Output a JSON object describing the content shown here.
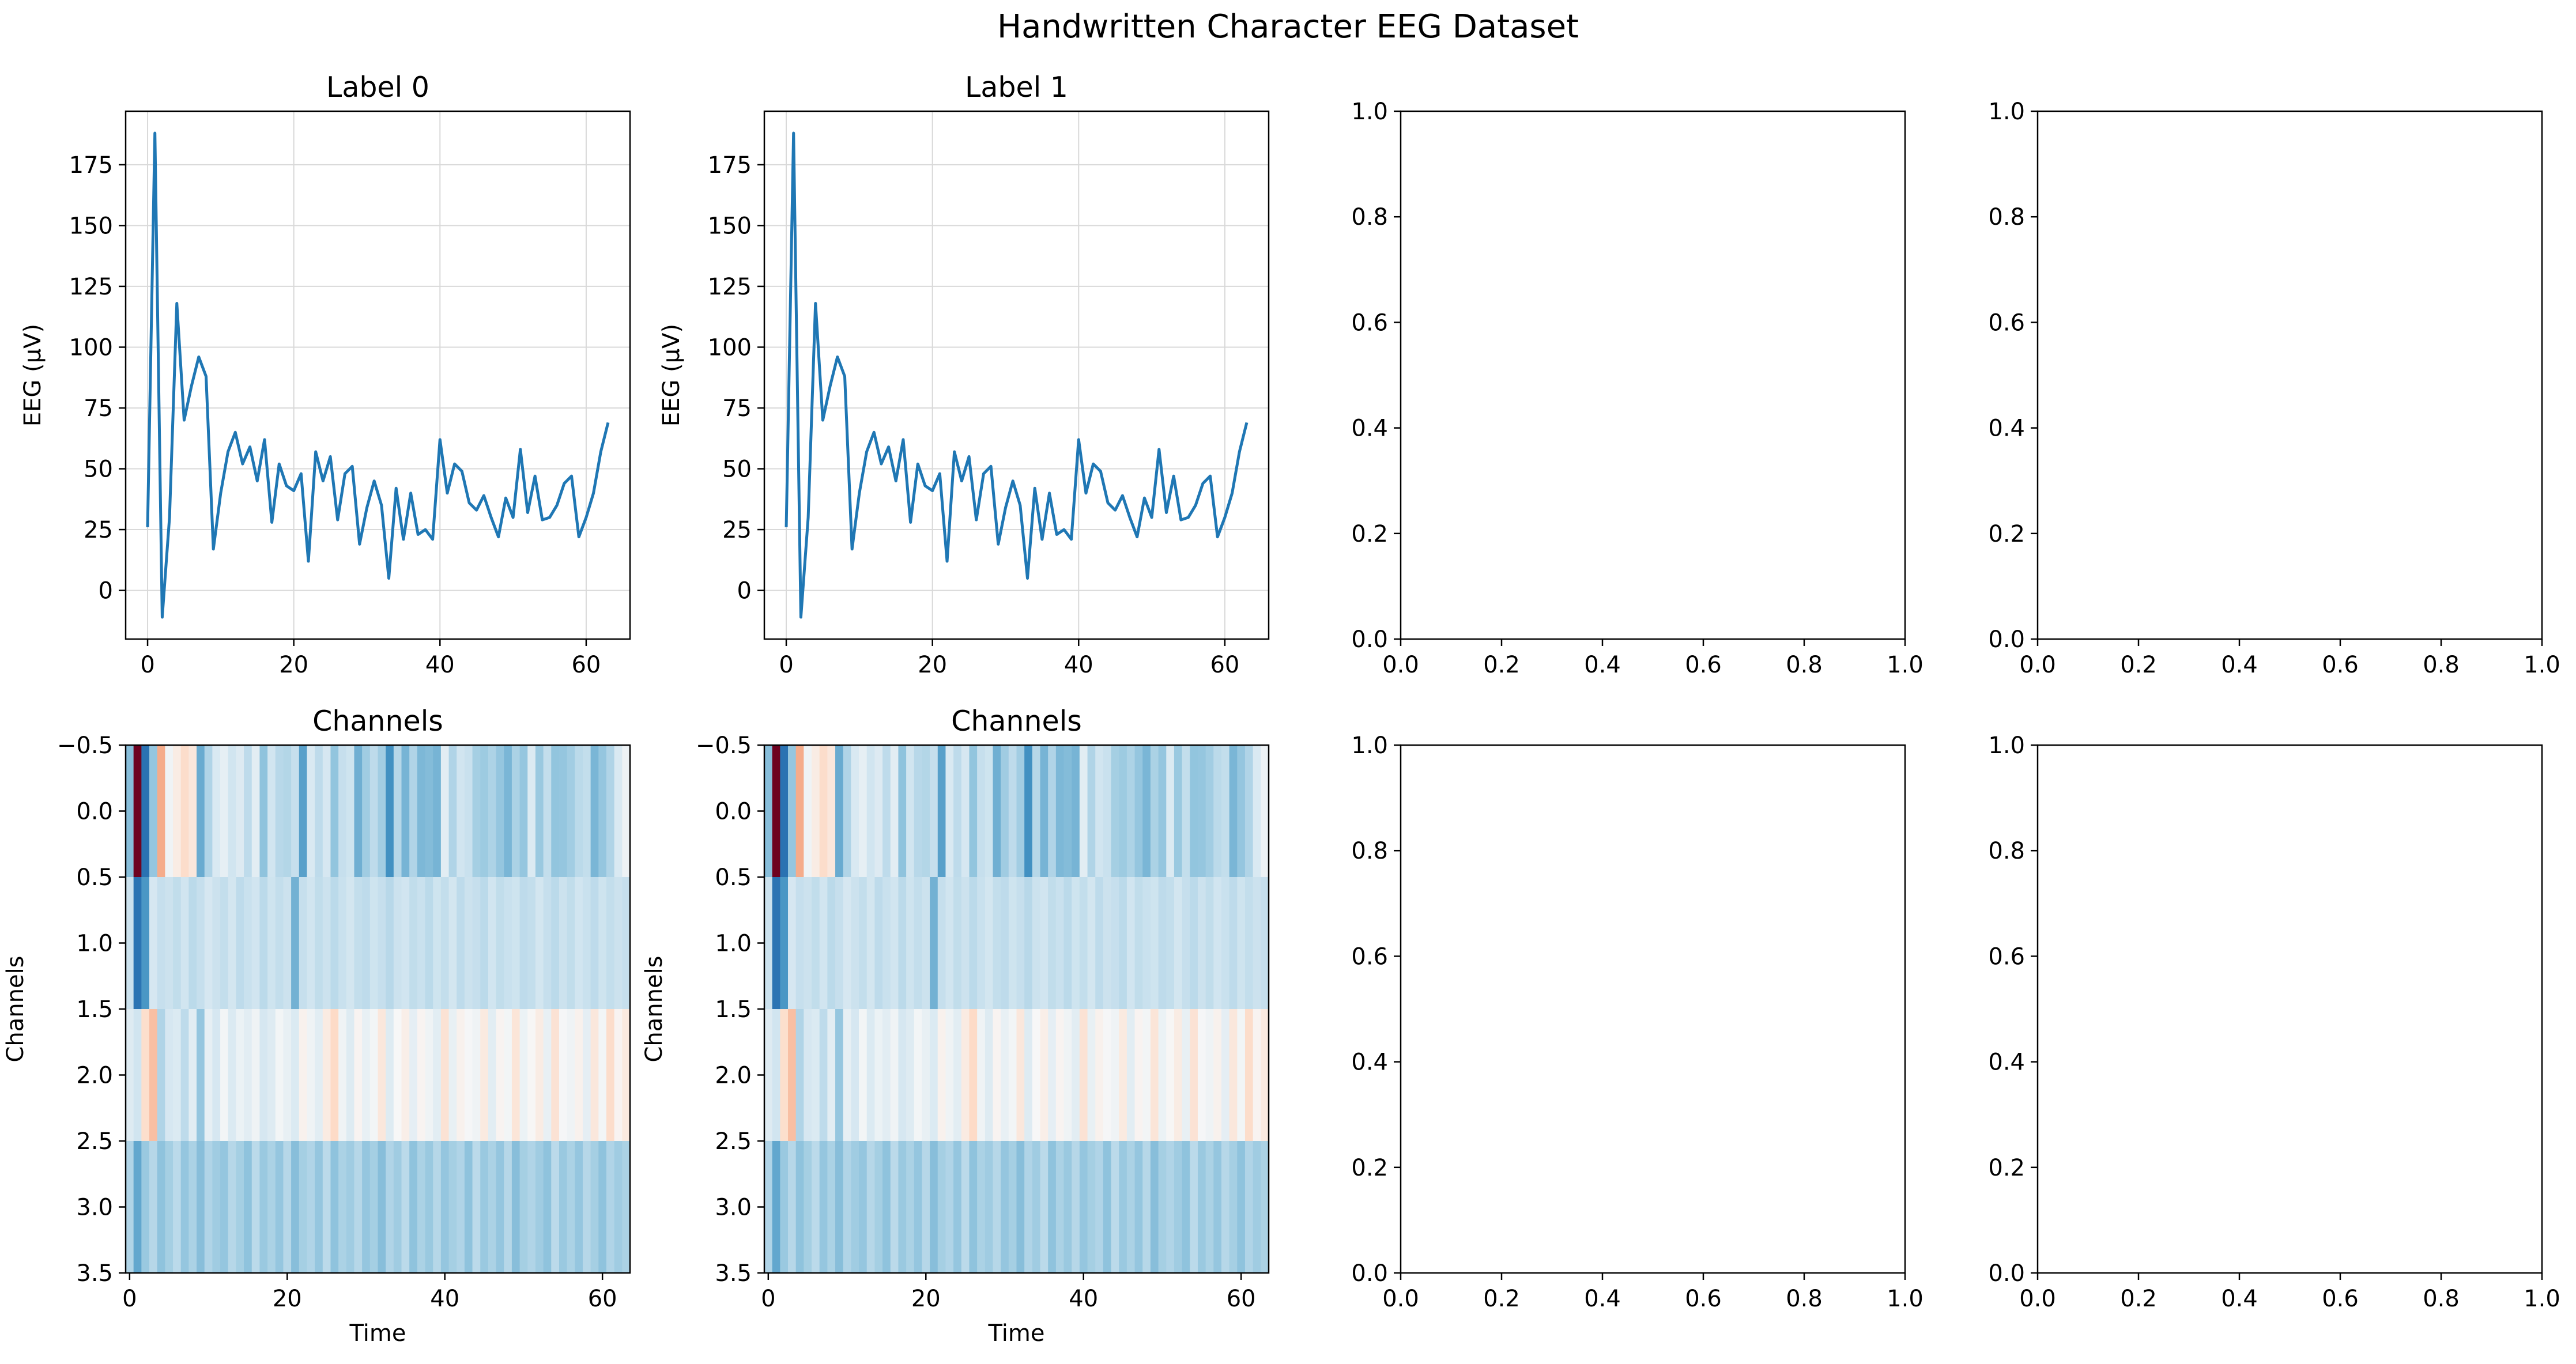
{
  "figure": {
    "title": "Handwritten Character EEG Dataset"
  },
  "colors": {
    "line": "#1f77b4",
    "grid": "#d9d9d9",
    "axes": "#000000",
    "colormap": "RdBu_r"
  },
  "chart_data": [
    {
      "id": "line-label-0",
      "type": "line",
      "title": "Label 0",
      "xlabel": "",
      "ylabel": "EEG (µV)",
      "xlim": [
        -3,
        66
      ],
      "ylim": [
        -20,
        197
      ],
      "xticks": [
        0,
        20,
        40,
        60
      ],
      "yticks": [
        0,
        25,
        50,
        75,
        100,
        125,
        150,
        175
      ],
      "grid": true,
      "series": [
        {
          "x": [
            0,
            1,
            2,
            3,
            4,
            5,
            6,
            7,
            8,
            9,
            10,
            11,
            12,
            13,
            14,
            15,
            16,
            17,
            18,
            19,
            20,
            21,
            22,
            23,
            24,
            25,
            26,
            27,
            28,
            29,
            30,
            31,
            32,
            33,
            34,
            35,
            36,
            37,
            38,
            39,
            40,
            41,
            42,
            43,
            44,
            45,
            46,
            47,
            48,
            49,
            50,
            51,
            52,
            53,
            54,
            55,
            56,
            57,
            58,
            59,
            60,
            61,
            62,
            63
          ],
          "values": [
            26,
            188,
            -11,
            30,
            118,
            70,
            84,
            96,
            88,
            17,
            40,
            57,
            65,
            52,
            59,
            45,
            62,
            28,
            52,
            43,
            41,
            48,
            12,
            57,
            45,
            55,
            29,
            48,
            51,
            19,
            34,
            45,
            35,
            5,
            42,
            21,
            40,
            23,
            25,
            21,
            62,
            40,
            52,
            49,
            36,
            33,
            39,
            30,
            22,
            38,
            30,
            58,
            32,
            47,
            29,
            30,
            35,
            44,
            47,
            22,
            30,
            40,
            57,
            69
          ]
        }
      ]
    },
    {
      "id": "line-label-1",
      "type": "line",
      "title": "Label 1",
      "xlabel": "",
      "ylabel": "EEG (µV)",
      "xlim": [
        -3,
        66
      ],
      "ylim": [
        -20,
        197
      ],
      "xticks": [
        0,
        20,
        40,
        60
      ],
      "yticks": [
        0,
        25,
        50,
        75,
        100,
        125,
        150,
        175
      ],
      "grid": true,
      "series": [
        {
          "x": [
            0,
            1,
            2,
            3,
            4,
            5,
            6,
            7,
            8,
            9,
            10,
            11,
            12,
            13,
            14,
            15,
            16,
            17,
            18,
            19,
            20,
            21,
            22,
            23,
            24,
            25,
            26,
            27,
            28,
            29,
            30,
            31,
            32,
            33,
            34,
            35,
            36,
            37,
            38,
            39,
            40,
            41,
            42,
            43,
            44,
            45,
            46,
            47,
            48,
            49,
            50,
            51,
            52,
            53,
            54,
            55,
            56,
            57,
            58,
            59,
            60,
            61,
            62,
            63
          ],
          "values": [
            26,
            188,
            -11,
            30,
            118,
            70,
            84,
            96,
            88,
            17,
            40,
            57,
            65,
            52,
            59,
            45,
            62,
            28,
            52,
            43,
            41,
            48,
            12,
            57,
            45,
            55,
            29,
            48,
            51,
            19,
            34,
            45,
            35,
            5,
            42,
            21,
            40,
            23,
            25,
            21,
            62,
            40,
            52,
            49,
            36,
            33,
            39,
            30,
            22,
            38,
            30,
            58,
            32,
            47,
            29,
            30,
            35,
            44,
            47,
            22,
            30,
            40,
            57,
            69
          ]
        }
      ]
    },
    {
      "id": "empty-top-3",
      "type": "line",
      "title": "",
      "xlim": [
        0,
        1
      ],
      "ylim": [
        0,
        1
      ],
      "xticks": [
        0,
        0.2,
        0.4,
        0.6,
        0.8,
        1.0
      ],
      "yticks": [
        0,
        0.2,
        0.4,
        0.6,
        0.8,
        1.0
      ],
      "xticklabels": [
        "0.0",
        "0.2",
        "0.4",
        "0.6",
        "0.8",
        "1.0"
      ],
      "yticklabels": [
        "0.0",
        "0.2",
        "0.4",
        "0.6",
        "0.8",
        "1.0"
      ],
      "series": []
    },
    {
      "id": "empty-top-4",
      "type": "line",
      "title": "",
      "xlim": [
        0,
        1
      ],
      "ylim": [
        0,
        1
      ],
      "xticks": [
        0,
        0.2,
        0.4,
        0.6,
        0.8,
        1.0
      ],
      "yticks": [
        0,
        0.2,
        0.4,
        0.6,
        0.8,
        1.0
      ],
      "xticklabels": [
        "0.0",
        "0.2",
        "0.4",
        "0.6",
        "0.8",
        "1.0"
      ],
      "yticklabels": [
        "0.0",
        "0.2",
        "0.4",
        "0.6",
        "0.8",
        "1.0"
      ],
      "series": []
    },
    {
      "id": "heatmap-label-0",
      "type": "heatmap",
      "title": "Channels",
      "xlabel": "Time",
      "ylabel": "Channels",
      "xlim": [
        -0.5,
        63.5
      ],
      "ylim": [
        3.5,
        -0.5
      ],
      "xticks": [
        0,
        20,
        40,
        60
      ],
      "yticks": [
        -0.5,
        0.0,
        0.5,
        1.0,
        1.5,
        2.0,
        2.5,
        3.0,
        3.5
      ],
      "yticklabels": [
        "−0.5",
        "0.0",
        "0.5",
        "1.0",
        "1.5",
        "2.0",
        "2.5",
        "3.0",
        "3.5"
      ],
      "vmin": -40,
      "vmax": 190,
      "rows": [
        [
          26,
          188,
          -11,
          30,
          118,
          70,
          84,
          96,
          88,
          17,
          40,
          57,
          65,
          52,
          59,
          45,
          62,
          28,
          52,
          43,
          41,
          48,
          12,
          57,
          45,
          55,
          29,
          48,
          51,
          19,
          34,
          45,
          35,
          5,
          42,
          21,
          40,
          23,
          25,
          21,
          62,
          40,
          52,
          49,
          36,
          33,
          39,
          30,
          22,
          38,
          30,
          58,
          32,
          47,
          29,
          30,
          35,
          44,
          47,
          22,
          30,
          40,
          57,
          69
        ],
        [
          50,
          -10,
          8,
          55,
          48,
          50,
          46,
          52,
          44,
          48,
          55,
          50,
          47,
          53,
          45,
          49,
          52,
          44,
          51,
          47,
          50,
          20,
          48,
          52,
          46,
          50,
          44,
          49,
          53,
          47,
          45,
          51,
          48,
          43,
          50,
          52,
          46,
          49,
          44,
          51,
          47,
          53,
          45,
          50,
          48,
          44,
          52,
          46,
          49,
          51,
          45,
          47,
          53,
          48,
          44,
          50,
          46,
          52,
          49,
          45,
          51,
          47,
          50,
          48
        ],
        [
          60,
          52,
          95,
          110,
          40,
          55,
          58,
          45,
          62,
          30,
          65,
          55,
          72,
          58,
          68,
          62,
          70,
          55,
          60,
          72,
          66,
          58,
          80,
          70,
          62,
          85,
          98,
          70,
          60,
          78,
          66,
          72,
          88,
          60,
          75,
          82,
          64,
          78,
          70,
          62,
          92,
          66,
          80,
          74,
          70,
          86,
          62,
          78,
          72,
          90,
          68,
          76,
          84,
          66,
          92,
          74,
          70,
          80,
          64,
          88,
          72,
          96,
          78,
          86
        ],
        [
          40,
          15,
          32,
          42,
          28,
          36,
          44,
          30,
          38,
          26,
          40,
          34,
          30,
          42,
          36,
          28,
          44,
          32,
          38,
          30,
          42,
          26,
          36,
          40,
          30,
          44,
          28,
          38,
          34,
          42,
          30,
          36,
          26,
          40,
          34,
          44,
          28,
          38,
          32,
          42,
          30,
          36,
          40,
          28,
          44,
          32,
          38,
          30,
          42,
          26,
          36,
          40,
          34,
          28,
          44,
          32,
          38,
          30,
          42,
          36,
          28,
          40,
          34,
          38
        ]
      ]
    },
    {
      "id": "heatmap-label-1",
      "type": "heatmap",
      "title": "Channels",
      "xlabel": "Time",
      "ylabel": "Channels",
      "xlim": [
        -0.5,
        63.5
      ],
      "ylim": [
        3.5,
        -0.5
      ],
      "xticks": [
        0,
        20,
        40,
        60
      ],
      "yticks": [
        -0.5,
        0.0,
        0.5,
        1.0,
        1.5,
        2.0,
        2.5,
        3.0,
        3.5
      ],
      "yticklabels": [
        "−0.5",
        "0.0",
        "0.5",
        "1.0",
        "1.5",
        "2.0",
        "2.5",
        "3.0",
        "3.5"
      ],
      "vmin": -40,
      "vmax": 190,
      "rows": [
        [
          26,
          188,
          -11,
          30,
          118,
          70,
          84,
          96,
          88,
          17,
          40,
          57,
          65,
          52,
          59,
          45,
          62,
          28,
          52,
          43,
          41,
          48,
          12,
          57,
          45,
          55,
          29,
          48,
          51,
          19,
          34,
          45,
          35,
          5,
          42,
          21,
          40,
          23,
          25,
          21,
          62,
          40,
          52,
          49,
          36,
          33,
          39,
          30,
          22,
          38,
          30,
          58,
          32,
          47,
          29,
          30,
          35,
          44,
          47,
          22,
          30,
          40,
          57,
          69
        ],
        [
          50,
          -10,
          8,
          55,
          48,
          50,
          46,
          52,
          44,
          48,
          55,
          50,
          47,
          53,
          45,
          49,
          52,
          44,
          51,
          47,
          50,
          20,
          48,
          52,
          46,
          50,
          44,
          49,
          53,
          47,
          45,
          51,
          48,
          43,
          50,
          52,
          46,
          49,
          44,
          51,
          47,
          53,
          45,
          50,
          48,
          44,
          52,
          46,
          49,
          51,
          45,
          47,
          53,
          48,
          44,
          50,
          46,
          52,
          49,
          45,
          51,
          47,
          50,
          48
        ],
        [
          60,
          52,
          95,
          110,
          40,
          55,
          58,
          45,
          62,
          30,
          65,
          55,
          72,
          58,
          68,
          62,
          70,
          55,
          60,
          72,
          66,
          58,
          80,
          70,
          62,
          85,
          98,
          70,
          60,
          78,
          66,
          72,
          88,
          60,
          75,
          82,
          64,
          78,
          70,
          62,
          92,
          66,
          80,
          74,
          70,
          86,
          62,
          78,
          72,
          90,
          68,
          76,
          84,
          66,
          92,
          74,
          70,
          80,
          64,
          88,
          72,
          96,
          78,
          86
        ],
        [
          40,
          15,
          32,
          42,
          28,
          36,
          44,
          30,
          38,
          26,
          40,
          34,
          30,
          42,
          36,
          28,
          44,
          32,
          38,
          30,
          42,
          26,
          36,
          40,
          30,
          44,
          28,
          38,
          34,
          42,
          30,
          36,
          26,
          40,
          34,
          44,
          28,
          38,
          32,
          42,
          30,
          36,
          40,
          28,
          44,
          32,
          38,
          30,
          42,
          26,
          36,
          40,
          34,
          28,
          44,
          32,
          38,
          30,
          42,
          36,
          28,
          40,
          34,
          38
        ]
      ]
    },
    {
      "id": "empty-bottom-3",
      "type": "line",
      "title": "",
      "xlim": [
        0,
        1
      ],
      "ylim": [
        0,
        1
      ],
      "xticks": [
        0,
        0.2,
        0.4,
        0.6,
        0.8,
        1.0
      ],
      "yticks": [
        0,
        0.2,
        0.4,
        0.6,
        0.8,
        1.0
      ],
      "xticklabels": [
        "0.0",
        "0.2",
        "0.4",
        "0.6",
        "0.8",
        "1.0"
      ],
      "yticklabels": [
        "0.0",
        "0.2",
        "0.4",
        "0.6",
        "0.8",
        "1.0"
      ],
      "series": []
    },
    {
      "id": "empty-bottom-4",
      "type": "line",
      "title": "",
      "xlim": [
        0,
        1
      ],
      "ylim": [
        0,
        1
      ],
      "xticks": [
        0,
        0.2,
        0.4,
        0.6,
        0.8,
        1.0
      ],
      "yticks": [
        0,
        0.2,
        0.4,
        0.6,
        0.8,
        1.0
      ],
      "xticklabels": [
        "0.0",
        "0.2",
        "0.4",
        "0.6",
        "0.8",
        "1.0"
      ],
      "yticklabels": [
        "0.0",
        "0.2",
        "0.4",
        "0.6",
        "0.8",
        "1.0"
      ],
      "series": []
    }
  ]
}
